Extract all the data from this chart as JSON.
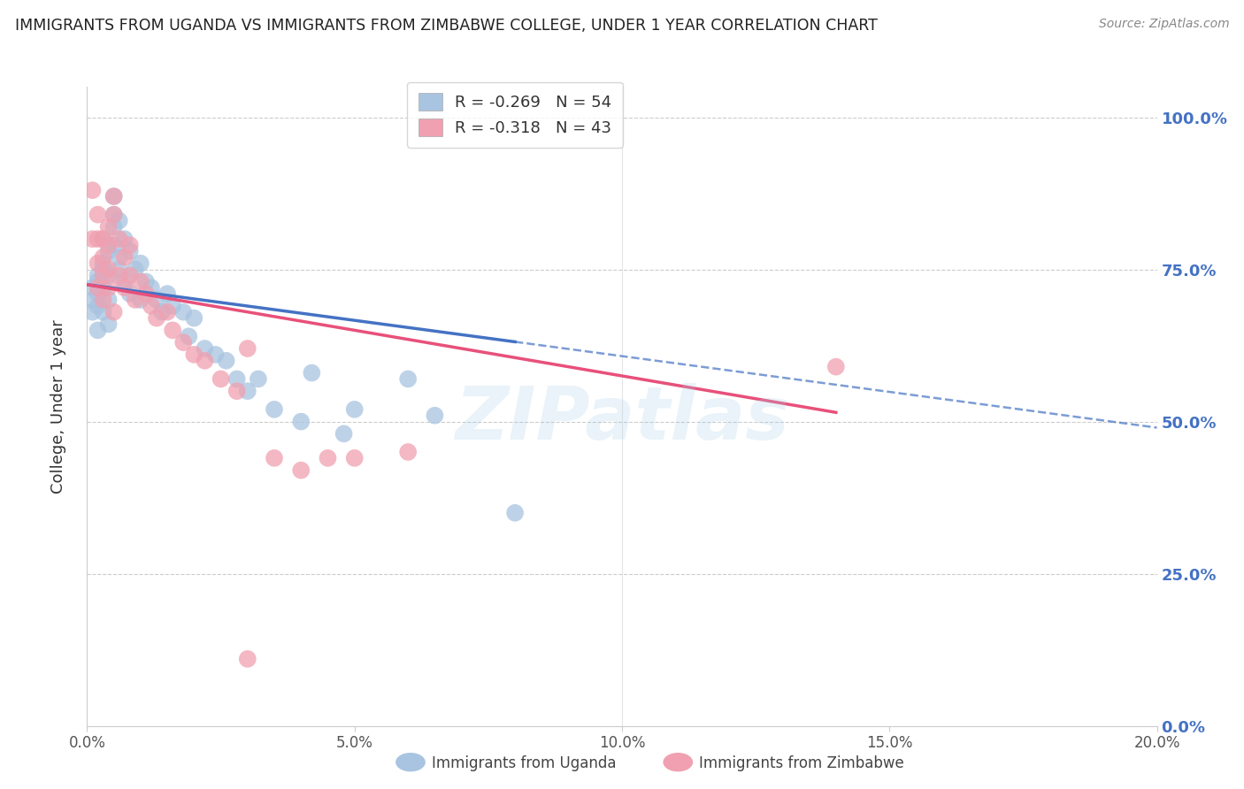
{
  "title": "IMMIGRANTS FROM UGANDA VS IMMIGRANTS FROM ZIMBABWE COLLEGE, UNDER 1 YEAR CORRELATION CHART",
  "source": "Source: ZipAtlas.com",
  "xlabel_ticks": [
    "0.0%",
    "5.0%",
    "10.0%",
    "15.0%",
    "20.0%"
  ],
  "xlabel_vals": [
    0.0,
    0.05,
    0.1,
    0.15,
    0.2
  ],
  "ylabel_ticks": [
    "0.0%",
    "25.0%",
    "50.0%",
    "75.0%",
    "100.0%"
  ],
  "ylabel_vals": [
    0.0,
    0.25,
    0.5,
    0.75,
    1.0
  ],
  "xlim": [
    0.0,
    0.2
  ],
  "ylim": [
    0.0,
    1.05
  ],
  "uganda_R": -0.269,
  "uganda_N": 54,
  "zimbabwe_R": -0.318,
  "zimbabwe_N": 43,
  "uganda_color": "#a8c4e0",
  "zimbabwe_color": "#f0a0b0",
  "uganda_line_color": "#4472c4",
  "zimbabwe_line_color": "#e8507a",
  "watermark": "ZIPatlas",
  "legend_label_uganda": "Immigrants from Uganda",
  "legend_label_zimbabwe": "Immigrants from Zimbabwe",
  "uganda_x": [
    0.001,
    0.001,
    0.001,
    0.002,
    0.002,
    0.002,
    0.002,
    0.002,
    0.003,
    0.003,
    0.003,
    0.003,
    0.003,
    0.004,
    0.004,
    0.004,
    0.004,
    0.005,
    0.005,
    0.005,
    0.005,
    0.006,
    0.006,
    0.006,
    0.007,
    0.007,
    0.008,
    0.008,
    0.009,
    0.01,
    0.01,
    0.011,
    0.012,
    0.013,
    0.014,
    0.015,
    0.016,
    0.018,
    0.019,
    0.02,
    0.022,
    0.024,
    0.026,
    0.028,
    0.03,
    0.032,
    0.035,
    0.04,
    0.042,
    0.048,
    0.05,
    0.06,
    0.065,
    0.08
  ],
  "uganda_y": [
    0.7,
    0.68,
    0.72,
    0.74,
    0.73,
    0.69,
    0.65,
    0.71,
    0.76,
    0.75,
    0.72,
    0.68,
    0.8,
    0.78,
    0.74,
    0.7,
    0.66,
    0.84,
    0.82,
    0.79,
    0.87,
    0.83,
    0.77,
    0.75,
    0.8,
    0.73,
    0.78,
    0.71,
    0.75,
    0.76,
    0.7,
    0.73,
    0.72,
    0.7,
    0.68,
    0.71,
    0.69,
    0.68,
    0.64,
    0.67,
    0.62,
    0.61,
    0.6,
    0.57,
    0.55,
    0.57,
    0.52,
    0.5,
    0.58,
    0.48,
    0.52,
    0.57,
    0.51,
    0.35
  ],
  "zimbabwe_x": [
    0.001,
    0.001,
    0.002,
    0.002,
    0.002,
    0.002,
    0.003,
    0.003,
    0.003,
    0.003,
    0.004,
    0.004,
    0.004,
    0.004,
    0.005,
    0.005,
    0.005,
    0.006,
    0.006,
    0.007,
    0.007,
    0.008,
    0.008,
    0.009,
    0.01,
    0.011,
    0.012,
    0.013,
    0.015,
    0.016,
    0.018,
    0.02,
    0.022,
    0.025,
    0.028,
    0.03,
    0.035,
    0.04,
    0.045,
    0.05,
    0.06,
    0.14,
    0.03
  ],
  "zimbabwe_y": [
    0.8,
    0.88,
    0.84,
    0.8,
    0.76,
    0.72,
    0.8,
    0.77,
    0.74,
    0.7,
    0.82,
    0.79,
    0.75,
    0.72,
    0.87,
    0.84,
    0.68,
    0.8,
    0.74,
    0.77,
    0.72,
    0.79,
    0.74,
    0.7,
    0.73,
    0.71,
    0.69,
    0.67,
    0.68,
    0.65,
    0.63,
    0.61,
    0.6,
    0.57,
    0.55,
    0.62,
    0.44,
    0.42,
    0.44,
    0.44,
    0.45,
    0.59,
    0.11
  ],
  "uganda_line_x0": 0.0,
  "uganda_line_x1": 0.2,
  "uganda_line_y0": 0.725,
  "uganda_line_y1": 0.49,
  "zimbabwe_line_x0": 0.0,
  "zimbabwe_line_x1": 0.2,
  "zimbabwe_line_y0": 0.725,
  "zimbabwe_line_y1": 0.425
}
